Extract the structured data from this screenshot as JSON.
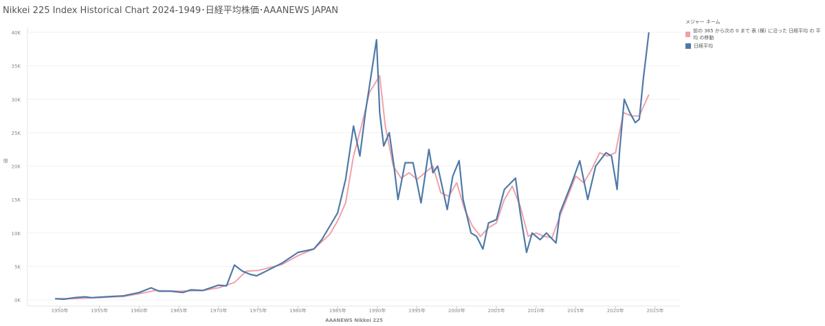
{
  "title": "Nikkei 225 Index Historical Chart 2024-1949･日経平均株価･AAANEWS JAPAN",
  "legend": {
    "title": "メジャー ネーム",
    "items": [
      {
        "label": "前の 365 から次の 0 まで 表 (横) に沿った 日経平均 の 平均 の移動",
        "color": "#f0a0aa"
      },
      {
        "label": "日経平均",
        "color": "#4e79a7"
      }
    ]
  },
  "chart_data": {
    "type": "line",
    "xlabel": "AAANEWS Nikkei 225",
    "ylabel": "値",
    "xlim": [
      1948,
      2026
    ],
    "ylim": [
      0,
      40000
    ],
    "xticks": [
      "1950年",
      "1955年",
      "1960年",
      "1965年",
      "1970年",
      "1975年",
      "1980年",
      "1985年",
      "1990年",
      "1995年",
      "2000年",
      "2005年",
      "2010年",
      "2015年",
      "2020年",
      "2025年"
    ],
    "yticks": [
      "0K",
      "5K",
      "10K",
      "15K",
      "20K",
      "25K",
      "30K",
      "35K",
      "40K"
    ],
    "grid": true,
    "legend_position": "right",
    "series": [
      {
        "name": "日経平均",
        "color": "#4e79a7",
        "x": [
          1949.4,
          1950.5,
          1952,
          1953.2,
          1954,
          1955,
          1957,
          1958,
          1960,
          1961.5,
          1962.5,
          1964,
          1965.5,
          1966.5,
          1968,
          1970,
          1971,
          1972,
          1973,
          1974,
          1974.8,
          1976,
          1978,
          1980,
          1982,
          1983,
          1984,
          1985,
          1986,
          1987,
          1987.8,
          1988.5,
          1989.9,
          1990.3,
          1990.8,
          1991.5,
          1992.1,
          1992.6,
          1993.5,
          1994.5,
          1995.5,
          1996.5,
          1997,
          1997.6,
          1998.8,
          1999.5,
          2000.3,
          2000.8,
          2001.8,
          2002.5,
          2003.3,
          2004,
          2005,
          2006,
          2007.4,
          2008,
          2008.8,
          2009.5,
          2010.5,
          2011.3,
          2012.5,
          2013,
          2013.5,
          2014.5,
          2015.5,
          2016.5,
          2017.5,
          2018.8,
          2019.5,
          2020.2,
          2020.5,
          2021.1,
          2021.8,
          2022.5,
          2023,
          2023.5,
          2024.2
        ],
        "values": [
          176,
          100,
          350,
          450,
          330,
          400,
          550,
          600,
          1100,
          1800,
          1300,
          1300,
          1100,
          1500,
          1400,
          2200,
          2100,
          5200,
          4300,
          3800,
          3600,
          4300,
          5500,
          7100,
          7600,
          9000,
          11000,
          13000,
          18000,
          26000,
          21500,
          28000,
          38900,
          28000,
          23000,
          25000,
          20000,
          15000,
          20500,
          20500,
          14500,
          22500,
          19000,
          20000,
          13500,
          18500,
          20800,
          15000,
          10000,
          9500,
          7600,
          11500,
          12000,
          16500,
          18200,
          13000,
          7100,
          10000,
          9000,
          10000,
          8500,
          13000,
          14500,
          17500,
          20800,
          15000,
          20000,
          22000,
          21500,
          16500,
          22000,
          30000,
          28000,
          26500,
          27000,
          33000,
          40000
        ]
      },
      {
        "name": "前の 365 から次の 0 まで 表 (横) に沿った 日経平均 の 平均 の移動",
        "color": "#f0a0aa",
        "x": [
          1949.4,
          1952,
          1955,
          1958,
          1960,
          1962,
          1965,
          1968,
          1970,
          1972,
          1973.5,
          1975,
          1978,
          1980,
          1982,
          1984,
          1985,
          1986,
          1987,
          1988,
          1989,
          1990.3,
          1991,
          1992,
          1993,
          1994,
          1995,
          1996,
          1997,
          1998,
          1999,
          2000,
          2001,
          2002,
          2003,
          2004,
          2005,
          2006,
          2007,
          2008,
          2009,
          2010,
          2011,
          2012,
          2013,
          2014,
          2015,
          2016,
          2017,
          2018,
          2019,
          2020,
          2021,
          2022,
          2023,
          2024.2
        ],
        "values": [
          176,
          200,
          350,
          500,
          900,
          1400,
          1300,
          1400,
          1800,
          2600,
          4300,
          4400,
          5300,
          6600,
          7600,
          9800,
          11800,
          14500,
          21500,
          26000,
          31000,
          33500,
          26000,
          20000,
          18200,
          19000,
          18000,
          19000,
          20000,
          16000,
          15500,
          17500,
          13500,
          11000,
          9500,
          10800,
          11500,
          15000,
          17000,
          14000,
          9500,
          10000,
          9500,
          9300,
          12500,
          15500,
          18500,
          17500,
          19500,
          22000,
          21500,
          22000,
          28000,
          27500,
          27500,
          30700
        ]
      }
    ]
  }
}
